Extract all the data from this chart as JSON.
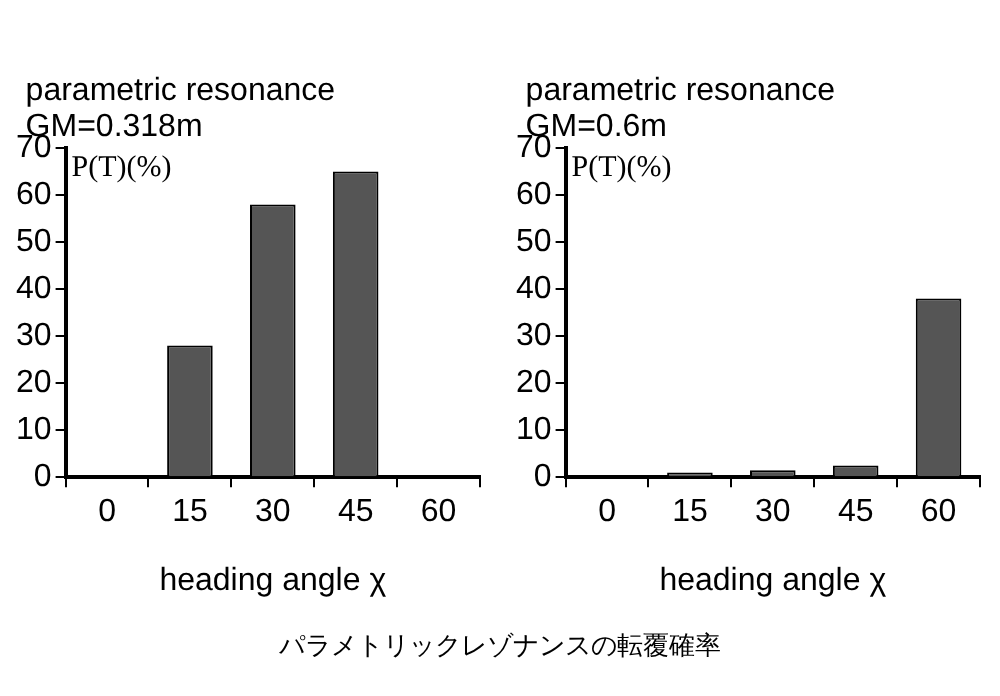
{
  "chart_data": [
    {
      "type": "bar",
      "title": "parametric resonance",
      "subtitle": "GM=0.318m",
      "ylabel": "P(T)(%)",
      "xlabel": "heading angle χ",
      "categories": [
        "0",
        "15",
        "30",
        "45",
        "60"
      ],
      "values": [
        null,
        28,
        58,
        65,
        null
      ],
      "color": "#555555",
      "ylim": [
        0,
        70
      ],
      "yticks": [
        0,
        10,
        20,
        30,
        40,
        50,
        60,
        70
      ],
      "grid": false,
      "legend": false
    },
    {
      "type": "bar",
      "title": "parametric resonance",
      "subtitle": "GM=0.6m",
      "ylabel": "P(T)(%)",
      "xlabel": "heading angle χ",
      "categories": [
        "0",
        "15",
        "30",
        "45",
        "60"
      ],
      "values": [
        null,
        1,
        1.5,
        2.5,
        38
      ],
      "color": "#555555",
      "ylim": [
        0,
        70
      ],
      "yticks": [
        0,
        10,
        20,
        30,
        40,
        50,
        60,
        70
      ],
      "grid": false,
      "legend": false,
      "annotations": [
        "パラメトリックレゾナンスの転覆確率"
      ]
    }
  ]
}
